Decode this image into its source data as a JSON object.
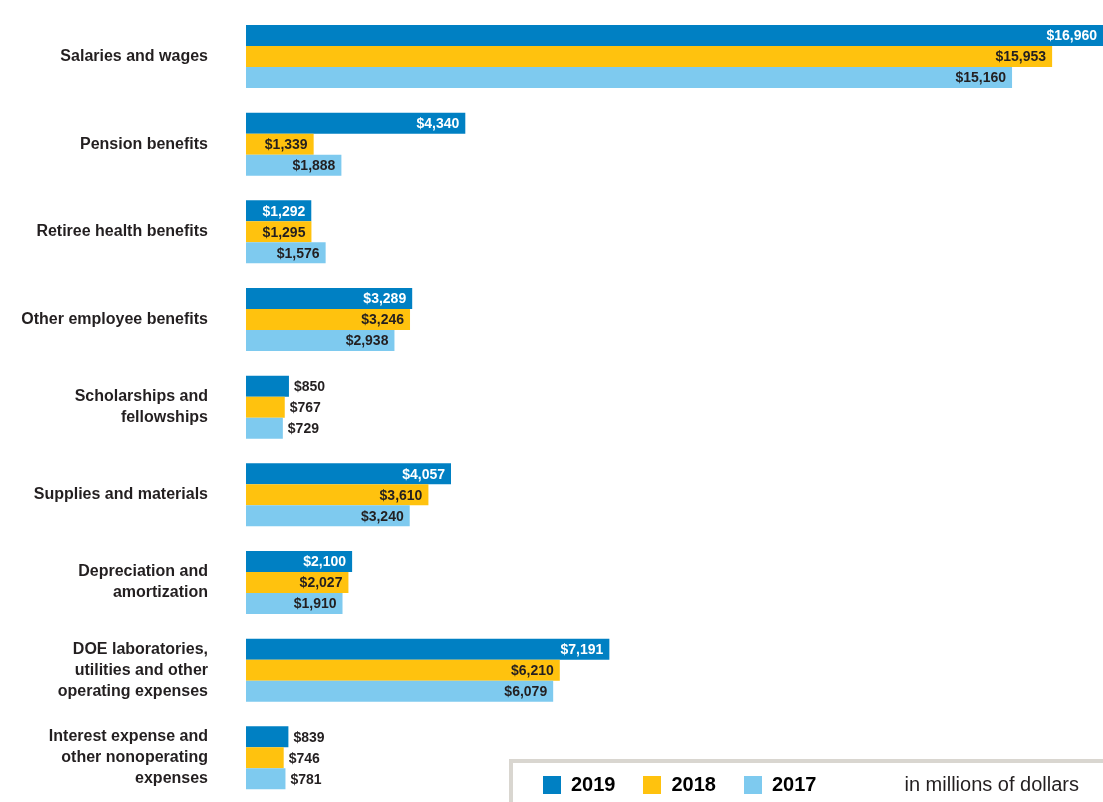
{
  "chart_data": {
    "type": "bar",
    "orientation": "horizontal",
    "categories": [
      "Salaries and wages",
      "Pension benefits",
      "Retiree health benefits",
      "Other employee benefits",
      "Scholarships and fellowships",
      "Supplies and materials",
      "Depreciation and amortization",
      "DOE laboratories, utilities and other operating expenses",
      "Interest expense and other nonoperating expenses"
    ],
    "series": [
      {
        "name": "2019",
        "color": "#0080c3",
        "values": [
          16960,
          4340,
          1292,
          3289,
          850,
          4057,
          2100,
          7191,
          839
        ],
        "value_labels": [
          "$16,960",
          "$4,340",
          "$1,292",
          "$3,289",
          "$850",
          "$4,057",
          "$2,100",
          "$7,191",
          "$839"
        ]
      },
      {
        "name": "2018",
        "color": "#ffc20e",
        "values": [
          15953,
          1339,
          1295,
          3246,
          767,
          3610,
          2027,
          6210,
          746
        ],
        "value_labels": [
          "$15,953",
          "$1,339",
          "$1,295",
          "$3,246",
          "$767",
          "$3,610",
          "$2,027",
          "$6,210",
          "$746"
        ]
      },
      {
        "name": "2017",
        "color": "#7ecaef",
        "values": [
          15160,
          1888,
          1576,
          2938,
          729,
          3240,
          1910,
          6079,
          781
        ],
        "value_labels": [
          "$15,160",
          "$1,888",
          "$1,576",
          "$2,938",
          "$729",
          "$3,240",
          "$1,910",
          "$6,079",
          "$781"
        ]
      }
    ],
    "legend": "bottom right",
    "annotations": [
      "in millions of dollars"
    ]
  }
}
